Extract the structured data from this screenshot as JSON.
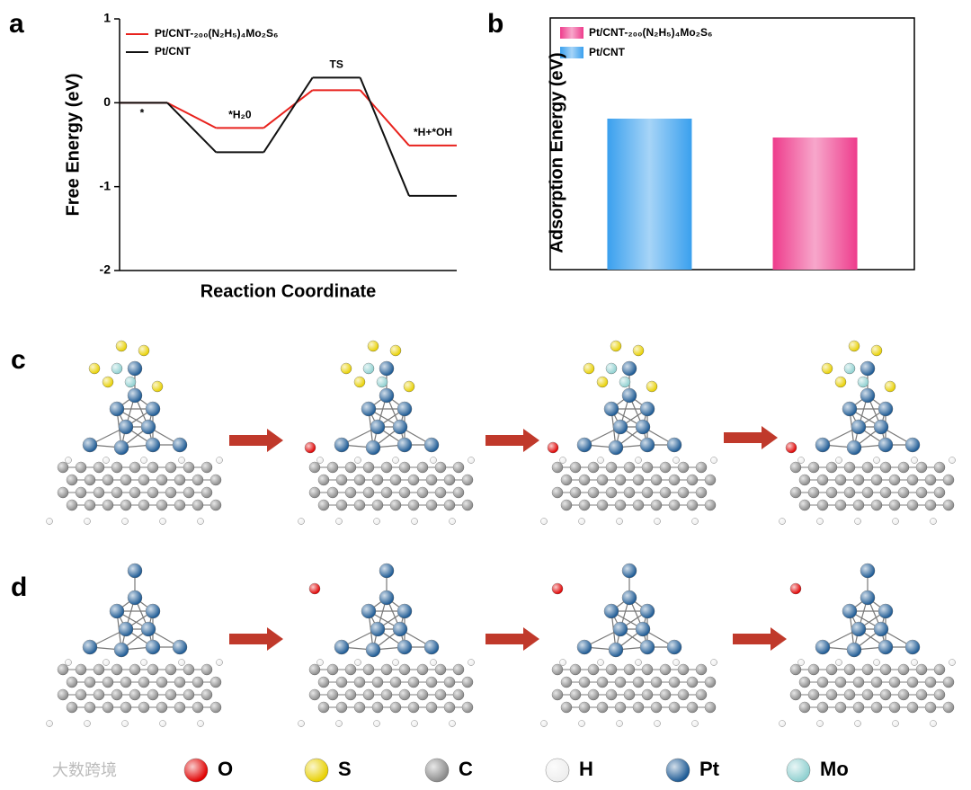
{
  "panels": [
    "a",
    "b",
    "c",
    "d"
  ],
  "chart_data": [
    {
      "type": "line",
      "xlabel": "Reaction Coordinate",
      "ylabel": "Free Energy (eV)",
      "categories": [
        "*",
        "*H₂0",
        "TS",
        "*H+*OH"
      ],
      "series": [
        {
          "name": "Pt/CNT-₂₀₀(N₂H₅)₄Mo₂S₆",
          "color": "#e8221d",
          "values": [
            0,
            -0.3,
            0.15,
            -0.51
          ]
        },
        {
          "name": "Pt/CNT",
          "color": "#111111",
          "values": [
            0,
            -0.59,
            0.3,
            -1.11
          ]
        }
      ],
      "ylim": [
        -2,
        1
      ],
      "yticks": [
        -2,
        -1,
        0,
        1
      ]
    },
    {
      "type": "bar",
      "ylabel": "Adsorption Energy (eV)",
      "categories": [
        null,
        null
      ],
      "series": [
        {
          "name": "Pt/CNT-₂₀₀(N₂H₅)₄Mo₂S₆",
          "color": "#ee3c8c",
          "values": [
            null,
            0.525
          ]
        },
        {
          "name": "Pt/CNT",
          "color": "#3aa0ee",
          "values": [
            0.6,
            null
          ]
        }
      ],
      "ylim": [
        0,
        1
      ]
    }
  ],
  "atom_legend": [
    {
      "label": "O",
      "color": "#e00000"
    },
    {
      "label": "S",
      "color": "#e8d000"
    },
    {
      "label": "C",
      "color": "#8a8a8a"
    },
    {
      "label": "H",
      "color": "#eeeeee"
    },
    {
      "label": "Pt",
      "color": "#1d5a94"
    },
    {
      "label": "Mo",
      "color": "#8fd0d0"
    }
  ],
  "watermark": "大数跨境"
}
